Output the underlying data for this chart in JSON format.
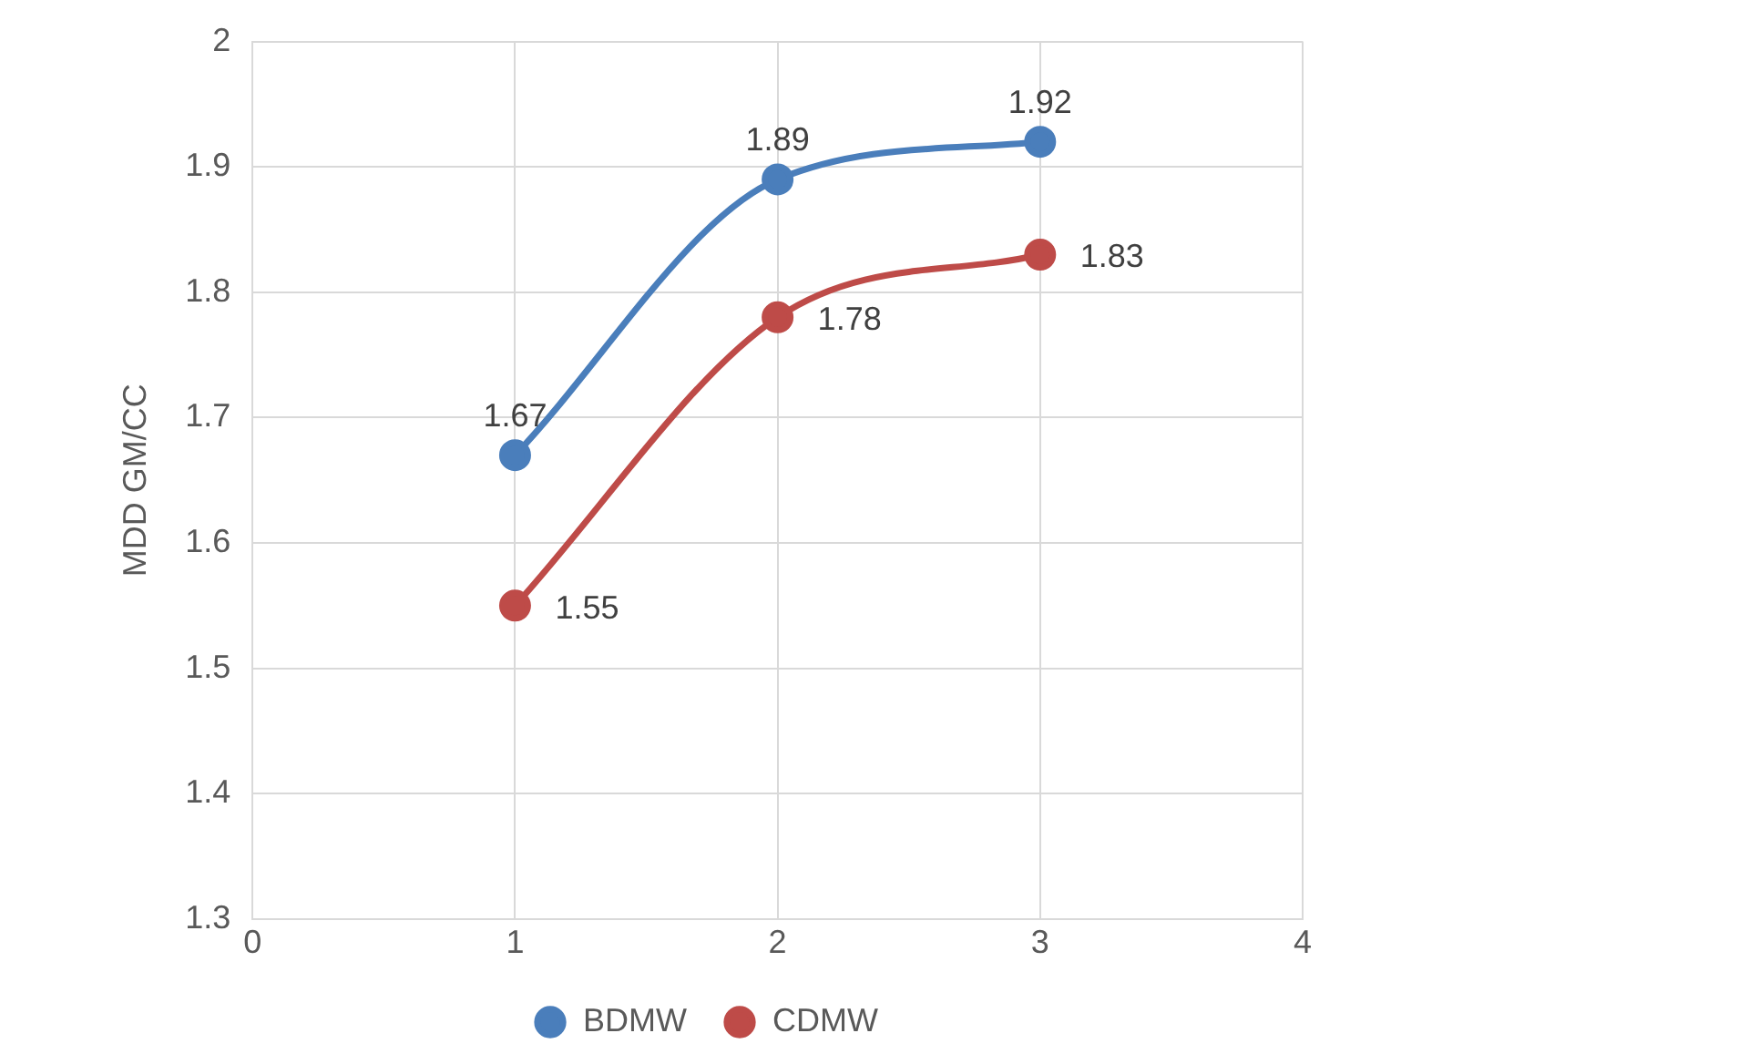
{
  "chart_data": {
    "type": "line",
    "ylabel": "MDD GM/CC",
    "x": [
      1,
      2,
      3
    ],
    "series": [
      {
        "name": "BDMW",
        "color": "#4a7ebb",
        "values": [
          1.67,
          1.89,
          1.92
        ]
      },
      {
        "name": "CDMW",
        "color": "#be4b48",
        "values": [
          1.55,
          1.78,
          1.83
        ]
      }
    ],
    "xlim": [
      0,
      4
    ],
    "xticks": [
      0,
      1,
      2,
      3,
      4
    ],
    "ylim": [
      1.3,
      2
    ],
    "yticks": [
      1.3,
      1.4,
      1.5,
      1.6,
      1.7,
      1.8,
      1.9,
      2
    ],
    "grid": true,
    "legend": "bottom",
    "marker": "circle",
    "line_style": "solid",
    "data_labels": true
  }
}
